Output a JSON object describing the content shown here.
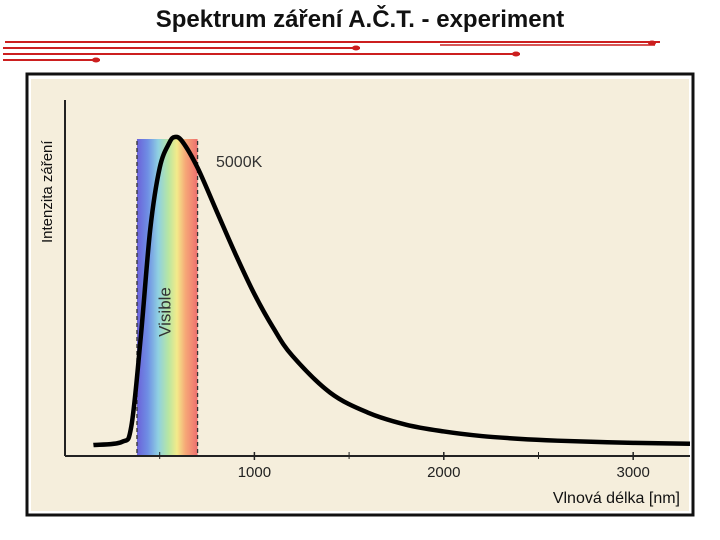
{
  "colors": {
    "accent": "#cc1f1f",
    "plot_bg": "#f5eedc",
    "frame": "#111111",
    "curve": "#000000"
  },
  "chart_data": {
    "type": "line",
    "title": "Spektrum záření A.Č.T. - experiment",
    "xlabel": "Vlnová délka [nm]",
    "ylabel": "Intenzita záření",
    "xlim": [
      0,
      3300
    ],
    "ylim": [
      0,
      1.0
    ],
    "xticks": [
      1000,
      2000,
      3000
    ],
    "xtick_labels": [
      "1000",
      "2000",
      "3000"
    ],
    "series": [
      {
        "name": "5000K",
        "x": [
          150,
          300,
          350,
          400,
          450,
          500,
          550,
          580,
          620,
          700,
          800,
          900,
          1000,
          1100,
          1200,
          1400,
          1600,
          1800,
          2000,
          2200,
          2400,
          2600,
          2800,
          3000,
          3300
        ],
        "y": [
          0.0,
          0.01,
          0.06,
          0.35,
          0.7,
          0.9,
          0.98,
          1.0,
          0.985,
          0.9,
          0.76,
          0.62,
          0.49,
          0.38,
          0.29,
          0.17,
          0.105,
          0.066,
          0.044,
          0.029,
          0.02,
          0.014,
          0.01,
          0.007,
          0.004
        ]
      }
    ],
    "annotations": [
      {
        "text": "Visible",
        "x_range": [
          380,
          700
        ]
      }
    ]
  }
}
